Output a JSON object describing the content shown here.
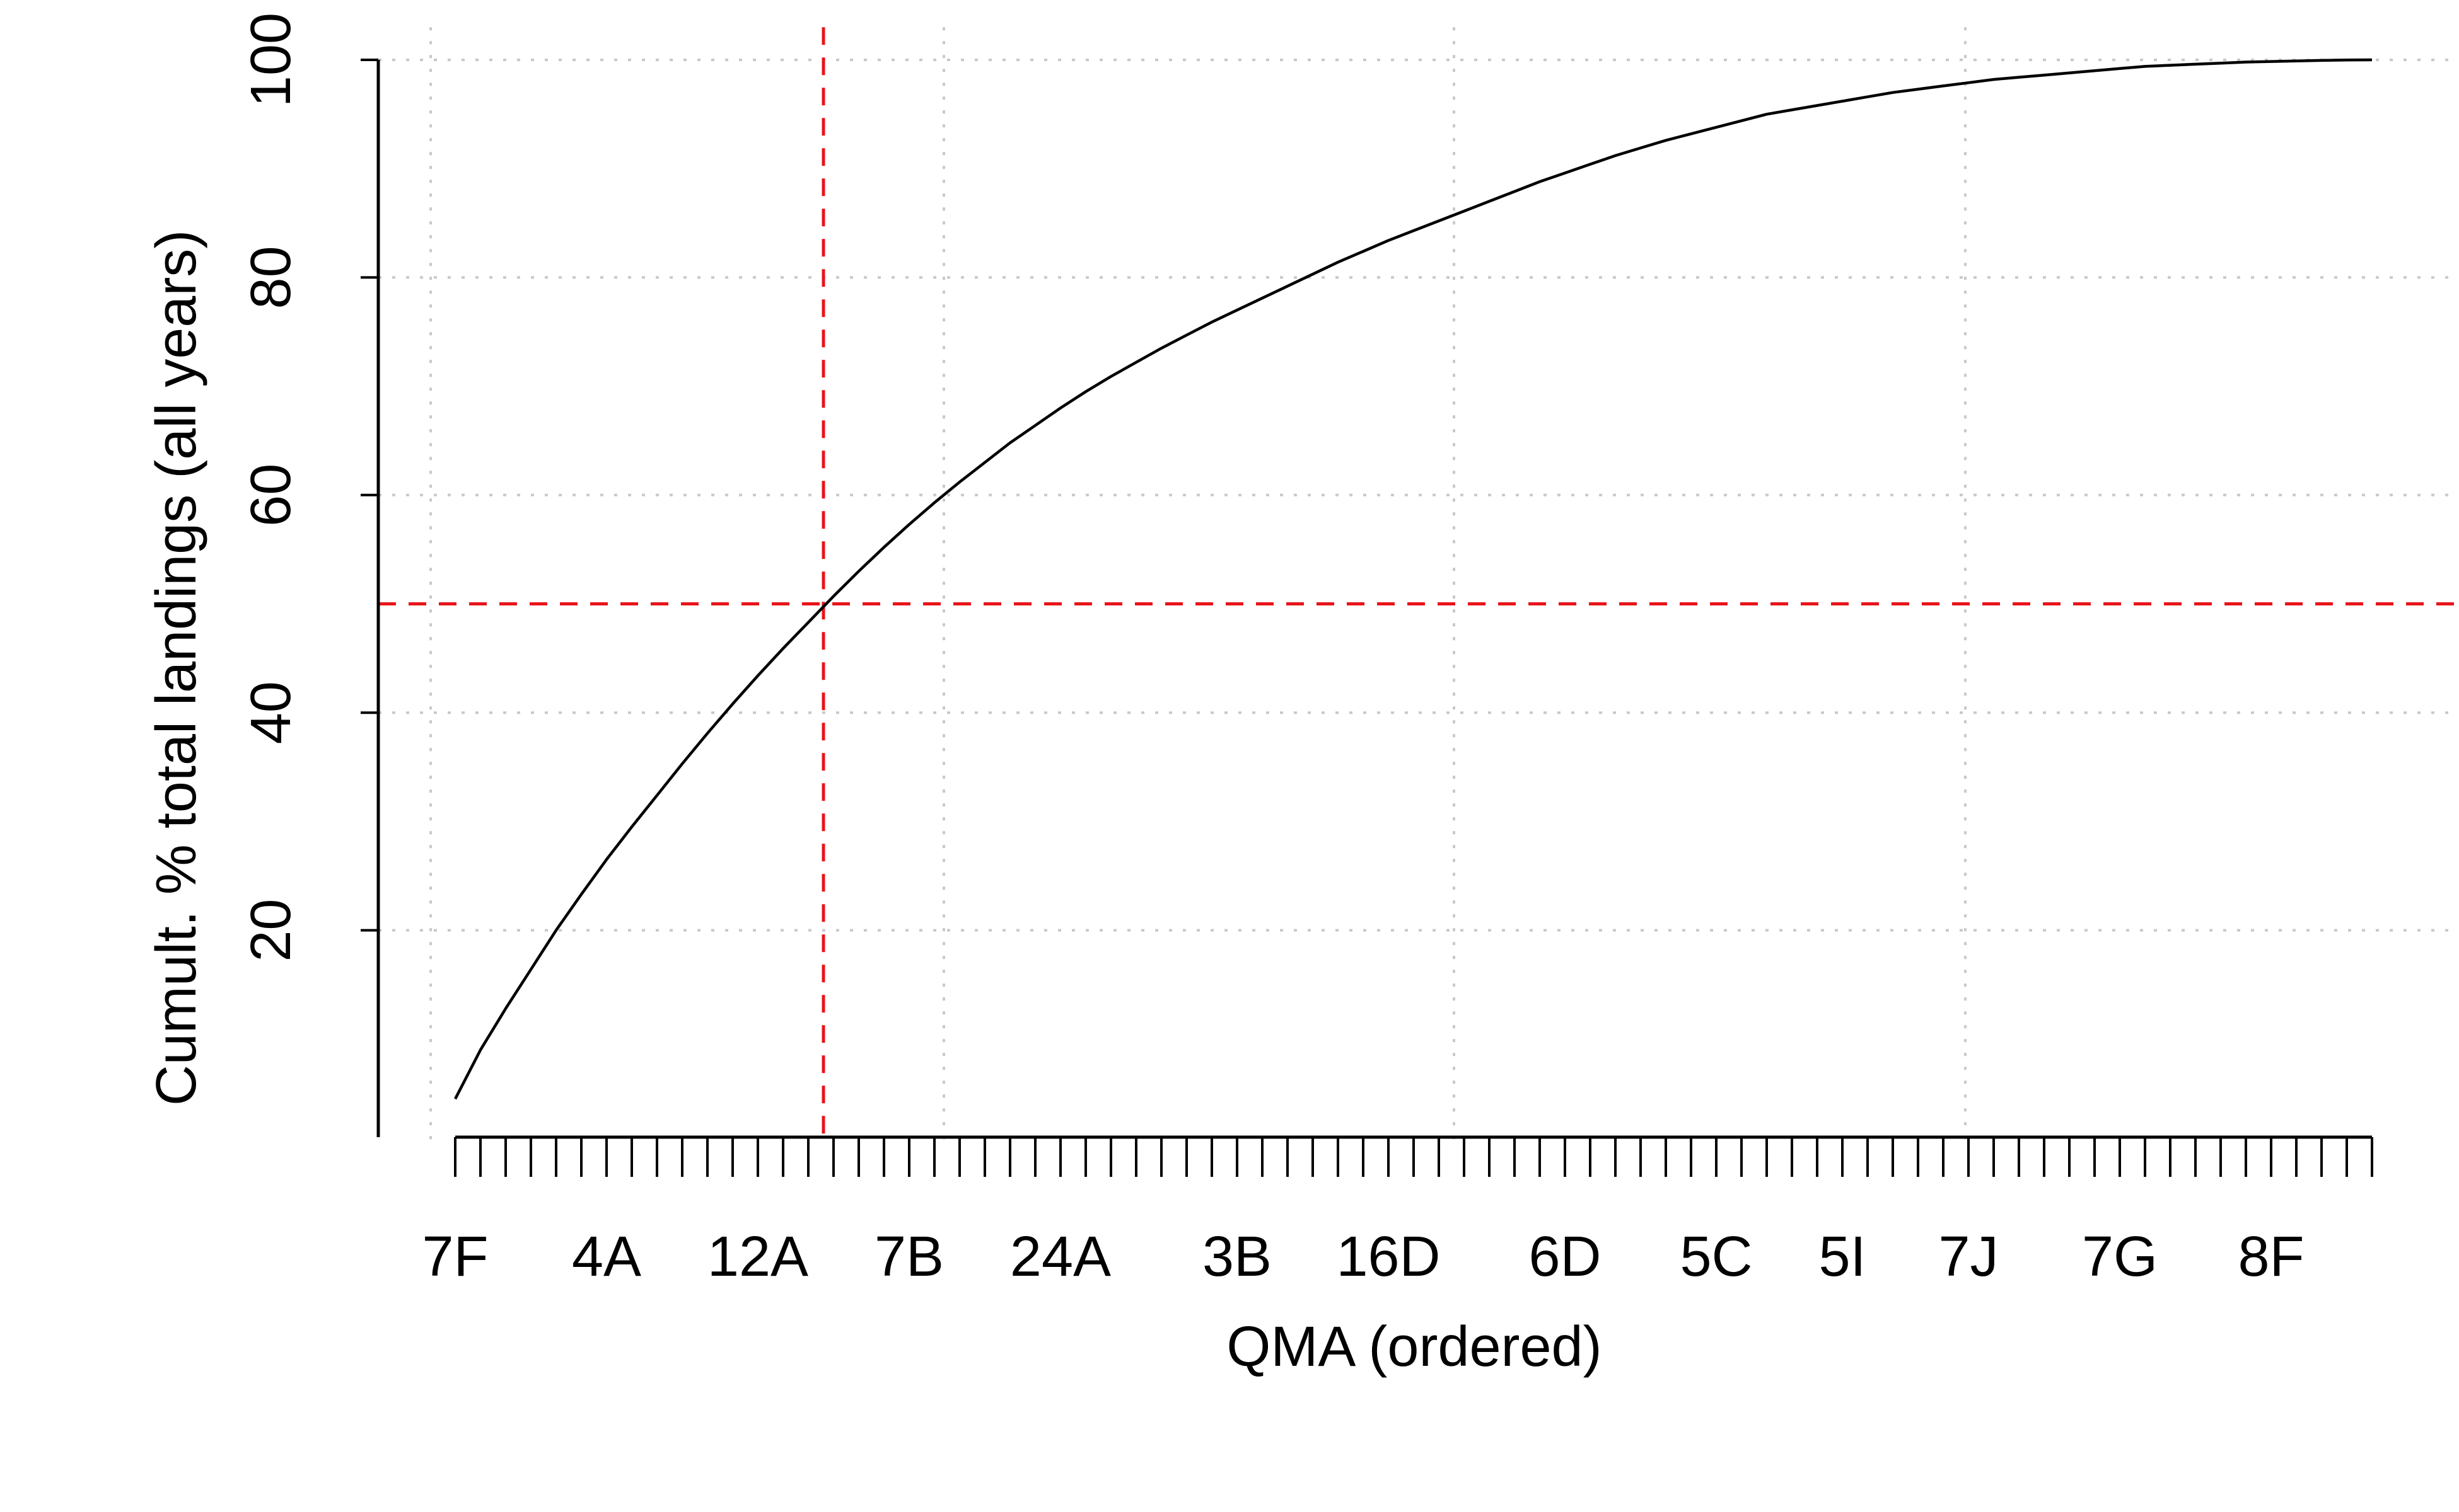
{
  "chart_data": {
    "type": "line",
    "xlabel": "QMA (ordered)",
    "ylabel": "Cumult. % total landings (all years)",
    "x_tick_labels": [
      "7F",
      "4A",
      "12A",
      "7B",
      "24A",
      "3B",
      "16D",
      "6D",
      "5C",
      "5I",
      "7J",
      "7G",
      "8F"
    ],
    "x_tick_label_positions": [
      1,
      7,
      13,
      19,
      25,
      32,
      38,
      45,
      51,
      56,
      61,
      67,
      73
    ],
    "x_minor_tick_count": 77,
    "y_ticks": [
      20,
      40,
      60,
      80,
      100
    ],
    "ylim": [
      0.6,
      103
    ],
    "grid": true,
    "reference_lines": {
      "horizontal_y": 50,
      "vertical_x": 15.6
    },
    "series": [
      {
        "x": [
          1,
          2,
          3,
          4,
          5,
          6,
          7,
          8,
          9,
          10,
          11,
          12,
          13,
          14,
          15,
          16,
          17,
          18,
          19,
          20,
          21,
          22,
          23,
          24,
          25,
          26,
          27,
          28,
          29,
          30,
          31,
          32,
          33,
          34,
          35,
          36,
          37,
          38,
          39,
          40,
          41,
          42,
          43,
          44,
          45,
          46,
          47,
          48,
          49,
          50,
          51,
          52,
          53,
          54,
          55,
          56,
          57,
          58,
          59,
          60,
          61,
          62,
          63,
          64,
          65,
          66,
          67,
          68,
          69,
          70,
          71,
          72,
          73,
          74,
          75,
          76,
          77
        ],
        "values": [
          4.5,
          9.0,
          12.8,
          16.4,
          20.0,
          23.3,
          26.5,
          29.5,
          32.4,
          35.3,
          38.1,
          40.8,
          43.4,
          45.9,
          48.3,
          50.7,
          53.0,
          55.2,
          57.3,
          59.3,
          61.2,
          63.0,
          64.8,
          66.4,
          68.0,
          69.5,
          70.9,
          72.2,
          73.5,
          74.7,
          75.9,
          77.0,
          78.1,
          79.2,
          80.3,
          81.4,
          82.4,
          83.4,
          84.3,
          85.2,
          86.1,
          87.0,
          87.9,
          88.8,
          89.6,
          90.4,
          91.2,
          91.9,
          92.6,
          93.2,
          93.8,
          94.4,
          95.0,
          95.4,
          95.8,
          96.2,
          96.6,
          97.0,
          97.3,
          97.6,
          97.9,
          98.2,
          98.4,
          98.6,
          98.8,
          99.0,
          99.2,
          99.4,
          99.5,
          99.6,
          99.7,
          99.8,
          99.85,
          99.9,
          99.95,
          99.98,
          100.0
        ]
      }
    ]
  }
}
